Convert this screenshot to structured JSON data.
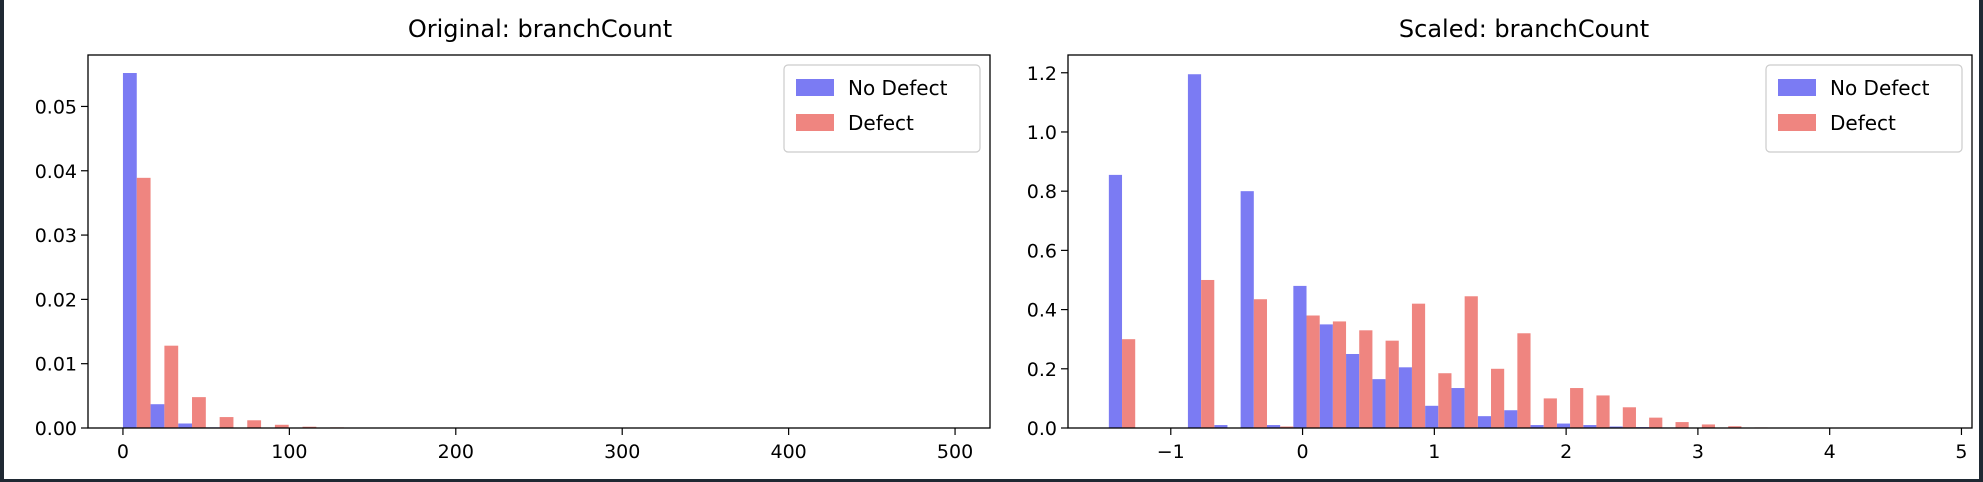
{
  "chart_data": [
    {
      "type": "bar",
      "title": "Original: branchCount",
      "xlabel": "",
      "ylabel": "",
      "xlim": [
        -21,
        521
      ],
      "ylim": [
        0,
        0.058
      ],
      "xticks": [
        0,
        100,
        200,
        300,
        400,
        500
      ],
      "xtick_labels": [
        "0",
        "100",
        "200",
        "300",
        "400",
        "500"
      ],
      "yticks": [
        0.0,
        0.01,
        0.02,
        0.03,
        0.04,
        0.05
      ],
      "ytick_labels": [
        "0.00",
        "0.01",
        "0.02",
        "0.03",
        "0.04",
        "0.05"
      ],
      "bin_width": 16.6,
      "x": [
        8.3,
        24.9,
        41.5,
        58.1,
        74.7,
        91.3,
        107.9,
        124.5,
        141.1,
        157.7,
        174.3,
        190.9,
        207.5,
        224.1,
        240.7,
        257.3,
        273.9,
        290.5,
        307.1,
        323.7,
        340.3,
        356.9,
        373.5,
        390.1,
        406.7,
        423.3,
        439.9,
        456.5,
        473.1,
        489.7
      ],
      "series": [
        {
          "name": "No Defect",
          "color": "#7b7bf3",
          "values": [
            0.0552,
            0.0037,
            0.0007,
            0.0001,
            5e-05,
            2e-05,
            1e-05,
            0,
            0,
            0,
            0,
            0,
            0,
            0,
            0,
            0,
            0,
            0,
            0,
            0,
            0,
            0,
            0,
            0,
            0,
            0,
            0,
            0,
            0,
            0
          ]
        },
        {
          "name": "Defect",
          "color": "#ef8580",
          "values": [
            0.0389,
            0.0128,
            0.0048,
            0.0017,
            0.0012,
            0.0005,
            0.0002,
            0.0001,
            5e-05,
            3e-05,
            2e-05,
            1e-05,
            0,
            0,
            0,
            0,
            0,
            0,
            0,
            0,
            0,
            0,
            0,
            0,
            0,
            0,
            0,
            0,
            0,
            0
          ]
        }
      ],
      "legend": "top-right",
      "grid": false
    },
    {
      "type": "bar",
      "title": "Scaled: branchCount",
      "xlabel": "",
      "ylabel": "",
      "xlim": [
        -1.78,
        5.08
      ],
      "ylim": [
        0,
        1.26
      ],
      "xticks": [
        -1,
        0,
        1,
        2,
        3,
        4,
        5
      ],
      "xtick_labels": [
        "−1",
        "0",
        "1",
        "2",
        "3",
        "4",
        "5"
      ],
      "yticks": [
        0.0,
        0.2,
        0.4,
        0.6,
        0.8,
        1.0,
        1.2
      ],
      "ytick_labels": [
        "0.0",
        "0.2",
        "0.4",
        "0.6",
        "0.8",
        "1.0",
        "1.2"
      ],
      "bin_width": 0.2,
      "x": [
        -1.37,
        -1.17,
        -0.97,
        -0.77,
        -0.57,
        -0.37,
        -0.17,
        0.03,
        0.23,
        0.43,
        0.63,
        0.83,
        1.03,
        1.23,
        1.43,
        1.63,
        1.83,
        2.03,
        2.23,
        2.43,
        2.63,
        2.83,
        3.03,
        3.23,
        3.43,
        3.63,
        3.83,
        4.03,
        4.23,
        4.43,
        4.63,
        4.83
      ],
      "series": [
        {
          "name": "No Defect",
          "color": "#7b7bf3",
          "values": [
            0.855,
            0,
            0,
            1.195,
            0.01,
            0.8,
            0.01,
            0.48,
            0.35,
            0.25,
            0.165,
            0.205,
            0.075,
            0.135,
            0.04,
            0.06,
            0.01,
            0.015,
            0.01,
            0.005,
            0.003,
            0.002,
            0.001,
            0.001,
            0,
            0,
            0,
            0,
            0,
            0,
            0,
            0
          ]
        },
        {
          "name": "Defect",
          "color": "#ef8580",
          "values": [
            0.3,
            0,
            0,
            0.5,
            0,
            0.435,
            0.005,
            0.38,
            0.36,
            0.33,
            0.295,
            0.42,
            0.185,
            0.445,
            0.2,
            0.32,
            0.1,
            0.135,
            0.11,
            0.07,
            0.035,
            0.02,
            0.012,
            0.006,
            0.002,
            0.001,
            0,
            0,
            0,
            0,
            0,
            0
          ]
        }
      ],
      "legend": "top-right",
      "grid": false
    }
  ]
}
